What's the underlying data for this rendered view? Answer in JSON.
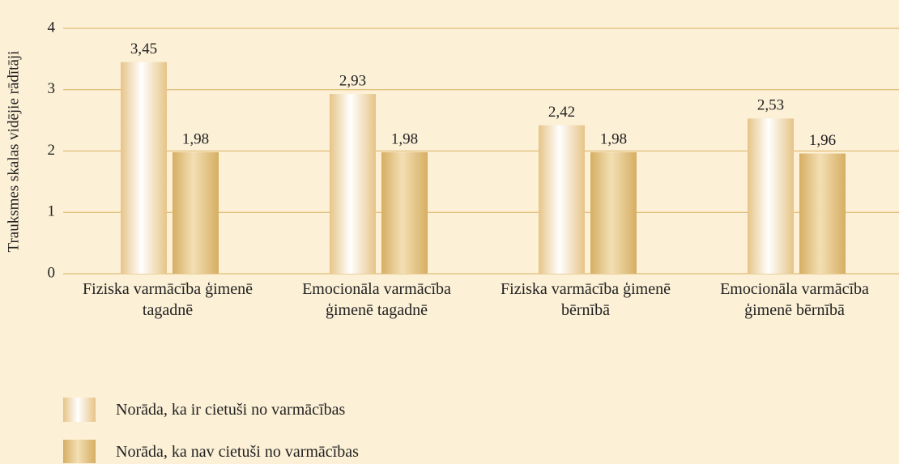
{
  "chart_data": {
    "type": "bar",
    "y_label": "Trauksmes skalas vidējie rādītāji",
    "categories": [
      "Fiziska varmācība ģimenē tagadnē",
      "Emocionāla varmācība ģimenē tagadnē",
      "Fiziska varmācība ģimenē bērnībā",
      "Emocionāla varmācība ģimenē bērnībā"
    ],
    "series": [
      {
        "name": "Norāda, ka ir cietuši no varmācības",
        "color": "#e6c487",
        "values": [
          3.45,
          2.93,
          2.42,
          2.53
        ],
        "value_labels": [
          "3,45",
          "2,93",
          "2,42",
          "2,53"
        ]
      },
      {
        "name": "Norāda, ka nav cietuši no varmācības",
        "color": "#d6ae62",
        "values": [
          1.98,
          1.98,
          1.98,
          1.96
        ],
        "value_labels": [
          "1,98",
          "1,98",
          "1,98",
          "1,96"
        ]
      }
    ],
    "ylim": [
      0,
      4
    ],
    "yticks": [
      0,
      1,
      2,
      3,
      4
    ],
    "grid": true,
    "grid_color": "#d9b060"
  }
}
